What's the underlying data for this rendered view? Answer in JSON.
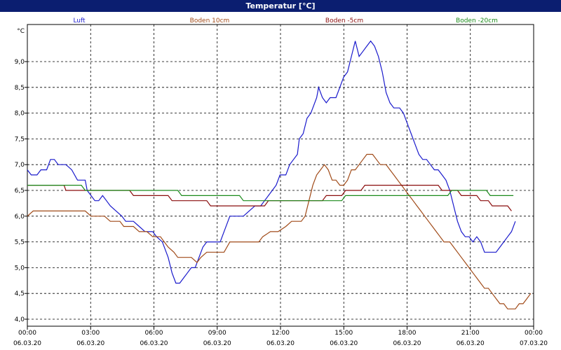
{
  "title": "Temperatur [°C]",
  "chart_data": {
    "type": "line",
    "ylabel": "°C",
    "ylim": [
      4.0,
      9.5
    ],
    "xlim_hours": [
      0,
      24
    ],
    "grid": true,
    "legend_placement": "top",
    "yticks": [
      "4,0",
      "4,5",
      "5,0",
      "5,5",
      "6,0",
      "6,5",
      "7,0",
      "7,5",
      "8,0",
      "8,5",
      "9,0"
    ],
    "xticks": [
      {
        "time": "00:00",
        "date": "06.03.20"
      },
      {
        "time": "03:00",
        "date": "06.03.20"
      },
      {
        "time": "06:00",
        "date": "06.03.20"
      },
      {
        "time": "09:00",
        "date": "06.03.20"
      },
      {
        "time": "12:00",
        "date": "06.03.20"
      },
      {
        "time": "15:00",
        "date": "06.03.20"
      },
      {
        "time": "18:00",
        "date": "06.03.20"
      },
      {
        "time": "21:00",
        "date": "06.03.20"
      },
      {
        "time": "00:00",
        "date": "07.03.20"
      }
    ],
    "series": [
      {
        "name": "Luft",
        "color": "#1a1acc",
        "points": [
          [
            0.0,
            6.9
          ],
          [
            0.2,
            6.8
          ],
          [
            0.5,
            6.8
          ],
          [
            0.7,
            6.9
          ],
          [
            1.0,
            6.9
          ],
          [
            1.2,
            7.1
          ],
          [
            1.4,
            7.1
          ],
          [
            1.6,
            7.0
          ],
          [
            2.0,
            7.0
          ],
          [
            2.3,
            6.9
          ],
          [
            2.6,
            6.7
          ],
          [
            3.0,
            6.7
          ],
          [
            3.1,
            6.5
          ],
          [
            3.3,
            6.4
          ],
          [
            3.5,
            6.3
          ],
          [
            3.7,
            6.3
          ],
          [
            3.9,
            6.4
          ],
          [
            4.1,
            6.3
          ],
          [
            4.3,
            6.2
          ],
          [
            4.6,
            6.1
          ],
          [
            4.9,
            6.0
          ],
          [
            5.1,
            5.9
          ],
          [
            5.5,
            5.9
          ],
          [
            5.8,
            5.8
          ],
          [
            6.1,
            5.7
          ],
          [
            6.5,
            5.7
          ],
          [
            6.7,
            5.6
          ],
          [
            7.0,
            5.5
          ],
          [
            7.3,
            5.2
          ],
          [
            7.5,
            4.9
          ],
          [
            7.7,
            4.7
          ],
          [
            7.9,
            4.7
          ],
          [
            8.1,
            4.8
          ],
          [
            8.3,
            4.9
          ],
          [
            8.5,
            5.0
          ],
          [
            8.7,
            5.0
          ],
          [
            8.9,
            5.2
          ],
          [
            9.1,
            5.4
          ],
          [
            9.3,
            5.5
          ],
          [
            9.6,
            5.5
          ],
          [
            10.0,
            5.5
          ],
          [
            10.2,
            5.7
          ],
          [
            10.5,
            6.0
          ],
          [
            10.8,
            6.0
          ],
          [
            11.2,
            6.0
          ],
          [
            11.5,
            6.1
          ],
          [
            11.8,
            6.2
          ],
          [
            12.1,
            6.2
          ],
          [
            12.3,
            6.3
          ],
          [
            12.5,
            6.4
          ],
          [
            12.7,
            6.5
          ],
          [
            12.9,
            6.6
          ],
          [
            13.1,
            6.8
          ],
          [
            13.4,
            6.8
          ],
          [
            13.6,
            7.0
          ],
          [
            13.8,
            7.1
          ],
          [
            14.0,
            7.2
          ],
          [
            14.1,
            7.5
          ],
          [
            14.3,
            7.6
          ],
          [
            14.5,
            7.9
          ],
          [
            14.7,
            8.0
          ],
          [
            14.9,
            8.2
          ],
          [
            15.0,
            8.3
          ],
          [
            15.1,
            8.5
          ],
          [
            15.3,
            8.3
          ],
          [
            15.5,
            8.2
          ],
          [
            15.7,
            8.3
          ],
          [
            16.0,
            8.3
          ],
          [
            16.2,
            8.5
          ],
          [
            16.4,
            8.7
          ],
          [
            16.6,
            8.8
          ],
          [
            16.8,
            9.1
          ],
          [
            17.0,
            9.4
          ],
          [
            17.2,
            9.1
          ],
          [
            17.4,
            9.2
          ],
          [
            17.6,
            9.3
          ],
          [
            17.8,
            9.4
          ],
          [
            18.0,
            9.3
          ],
          [
            18.2,
            9.1
          ],
          [
            18.4,
            8.8
          ],
          [
            18.6,
            8.4
          ],
          [
            18.8,
            8.2
          ],
          [
            19.0,
            8.1
          ],
          [
            19.3,
            8.1
          ],
          [
            19.5,
            8.0
          ],
          [
            19.7,
            7.8
          ],
          [
            19.9,
            7.6
          ],
          [
            20.1,
            7.4
          ],
          [
            20.3,
            7.2
          ],
          [
            20.5,
            7.1
          ],
          [
            20.7,
            7.1
          ],
          [
            20.9,
            7.0
          ],
          [
            21.1,
            6.9
          ],
          [
            21.3,
            6.9
          ],
          [
            21.5,
            6.8
          ],
          [
            21.7,
            6.7
          ],
          [
            21.9,
            6.5
          ],
          [
            22.1,
            6.2
          ],
          [
            22.3,
            5.9
          ],
          [
            22.5,
            5.7
          ],
          [
            22.7,
            5.6
          ],
          [
            22.9,
            5.6
          ],
          [
            23.1,
            5.5
          ],
          [
            23.3,
            5.6
          ],
          [
            23.5,
            5.5
          ],
          [
            23.7,
            5.3
          ],
          [
            23.9,
            5.3
          ],
          [
            24.1,
            5.3
          ],
          [
            24.3,
            5.3
          ],
          [
            24.5,
            5.4
          ],
          [
            24.7,
            5.5
          ],
          [
            24.9,
            5.6
          ],
          [
            25.1,
            5.7
          ],
          [
            25.3,
            5.9
          ]
        ]
      },
      {
        "name": "Boden 10cm",
        "color": "#a04a18",
        "points": [
          [
            0.0,
            6.0
          ],
          [
            0.3,
            6.1
          ],
          [
            1.0,
            6.1
          ],
          [
            2.0,
            6.1
          ],
          [
            3.0,
            6.1
          ],
          [
            3.3,
            6.0
          ],
          [
            4.0,
            6.0
          ],
          [
            4.3,
            5.9
          ],
          [
            4.8,
            5.9
          ],
          [
            5.0,
            5.8
          ],
          [
            5.5,
            5.8
          ],
          [
            5.8,
            5.7
          ],
          [
            6.2,
            5.7
          ],
          [
            6.5,
            5.6
          ],
          [
            6.9,
            5.6
          ],
          [
            7.1,
            5.5
          ],
          [
            7.3,
            5.4
          ],
          [
            7.6,
            5.3
          ],
          [
            7.8,
            5.2
          ],
          [
            8.2,
            5.2
          ],
          [
            8.5,
            5.2
          ],
          [
            8.8,
            5.1
          ],
          [
            9.0,
            5.2
          ],
          [
            9.3,
            5.3
          ],
          [
            9.7,
            5.3
          ],
          [
            10.2,
            5.3
          ],
          [
            10.5,
            5.5
          ],
          [
            11.0,
            5.5
          ],
          [
            11.5,
            5.5
          ],
          [
            12.0,
            5.5
          ],
          [
            12.2,
            5.6
          ],
          [
            12.6,
            5.7
          ],
          [
            13.0,
            5.7
          ],
          [
            13.4,
            5.8
          ],
          [
            13.7,
            5.9
          ],
          [
            14.2,
            5.9
          ],
          [
            14.4,
            6.0
          ],
          [
            14.6,
            6.3
          ],
          [
            14.8,
            6.6
          ],
          [
            15.0,
            6.8
          ],
          [
            15.2,
            6.9
          ],
          [
            15.4,
            7.0
          ],
          [
            15.6,
            6.9
          ],
          [
            15.8,
            6.7
          ],
          [
            16.0,
            6.7
          ],
          [
            16.2,
            6.6
          ],
          [
            16.4,
            6.6
          ],
          [
            16.6,
            6.7
          ],
          [
            16.8,
            6.9
          ],
          [
            17.0,
            6.9
          ],
          [
            17.2,
            7.0
          ],
          [
            17.4,
            7.1
          ],
          [
            17.6,
            7.2
          ],
          [
            17.9,
            7.2
          ],
          [
            18.1,
            7.1
          ],
          [
            18.3,
            7.0
          ],
          [
            18.6,
            7.0
          ],
          [
            18.8,
            6.9
          ],
          [
            19.0,
            6.8
          ],
          [
            19.2,
            6.7
          ],
          [
            19.4,
            6.6
          ],
          [
            19.6,
            6.5
          ],
          [
            19.8,
            6.4
          ],
          [
            20.0,
            6.3
          ],
          [
            20.2,
            6.2
          ],
          [
            20.4,
            6.1
          ],
          [
            20.6,
            6.0
          ],
          [
            20.8,
            5.9
          ],
          [
            21.0,
            5.8
          ],
          [
            21.2,
            5.7
          ],
          [
            21.4,
            5.6
          ],
          [
            21.6,
            5.5
          ],
          [
            21.9,
            5.5
          ],
          [
            22.1,
            5.4
          ],
          [
            22.3,
            5.3
          ],
          [
            22.5,
            5.2
          ],
          [
            22.7,
            5.1
          ],
          [
            22.9,
            5.0
          ],
          [
            23.1,
            4.9
          ],
          [
            23.3,
            4.8
          ],
          [
            23.5,
            4.7
          ],
          [
            23.7,
            4.6
          ],
          [
            23.9,
            4.6
          ],
          [
            24.1,
            4.5
          ],
          [
            24.3,
            4.4
          ],
          [
            24.5,
            4.3
          ],
          [
            24.7,
            4.3
          ],
          [
            24.9,
            4.2
          ],
          [
            25.1,
            4.2
          ],
          [
            25.3,
            4.2
          ],
          [
            25.5,
            4.3
          ],
          [
            25.7,
            4.3
          ],
          [
            25.9,
            4.4
          ],
          [
            26.1,
            4.5
          ]
        ]
      },
      {
        "name": "Boden -5cm",
        "color": "#8a0c0c",
        "points": [
          [
            0.0,
            6.6
          ],
          [
            1.9,
            6.6
          ],
          [
            2.0,
            6.5
          ],
          [
            5.3,
            6.5
          ],
          [
            5.5,
            6.4
          ],
          [
            7.3,
            6.4
          ],
          [
            7.5,
            6.3
          ],
          [
            9.3,
            6.3
          ],
          [
            9.5,
            6.2
          ],
          [
            12.3,
            6.2
          ],
          [
            12.5,
            6.3
          ],
          [
            15.3,
            6.3
          ],
          [
            15.5,
            6.4
          ],
          [
            16.3,
            6.4
          ],
          [
            16.5,
            6.5
          ],
          [
            17.3,
            6.5
          ],
          [
            17.5,
            6.6
          ],
          [
            21.3,
            6.6
          ],
          [
            21.5,
            6.5
          ],
          [
            22.3,
            6.5
          ],
          [
            22.5,
            6.4
          ],
          [
            23.3,
            6.4
          ],
          [
            23.5,
            6.3
          ],
          [
            23.9,
            6.3
          ],
          [
            24.1,
            6.2
          ],
          [
            24.9,
            6.2
          ],
          [
            25.1,
            6.1
          ]
        ]
      },
      {
        "name": "Boden -20cm",
        "color": "#1a8a1a",
        "points": [
          [
            0.0,
            6.6
          ],
          [
            2.8,
            6.6
          ],
          [
            3.0,
            6.5
          ],
          [
            7.8,
            6.5
          ],
          [
            8.0,
            6.4
          ],
          [
            11.0,
            6.4
          ],
          [
            11.2,
            6.3
          ],
          [
            16.3,
            6.3
          ],
          [
            16.5,
            6.4
          ],
          [
            21.8,
            6.4
          ],
          [
            22.0,
            6.5
          ],
          [
            23.8,
            6.5
          ],
          [
            24.0,
            6.4
          ],
          [
            25.2,
            6.4
          ]
        ]
      }
    ]
  }
}
